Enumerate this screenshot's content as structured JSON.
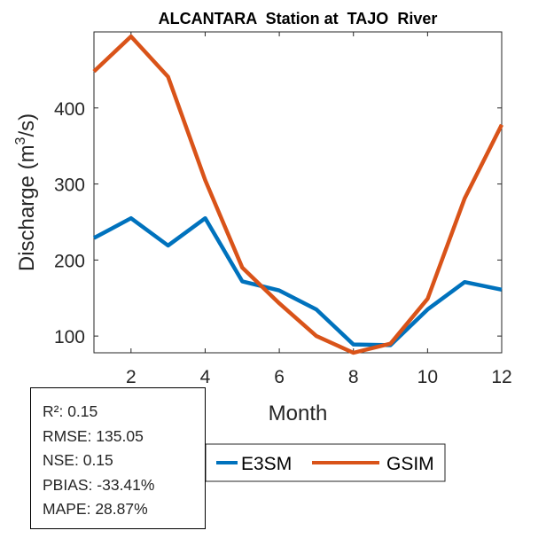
{
  "chart_data": {
    "type": "line",
    "title": "ALCANTARA  Station at  TAJO  River",
    "xlabel": "Month",
    "ylabel_prefix": "Discharge (m",
    "ylabel_sup": "3",
    "ylabel_suffix": "/s)",
    "xlim": [
      1,
      12
    ],
    "ylim": [
      78,
      500
    ],
    "xticks": [
      2,
      4,
      6,
      8,
      10,
      12
    ],
    "yticks": [
      100,
      200,
      300,
      400
    ],
    "grid": false,
    "legend_position": "bottom-center",
    "x": [
      1,
      2,
      3,
      4,
      5,
      6,
      7,
      8,
      9,
      10,
      11,
      12
    ],
    "series": [
      {
        "name": "E3SM",
        "color": "#0072BD",
        "values": [
          229,
          255,
          219,
          255,
          172,
          160,
          135,
          89,
          88,
          135,
          171,
          161
        ]
      },
      {
        "name": "GSIM",
        "color": "#D95319",
        "values": [
          448,
          494,
          441,
          305,
          190,
          143,
          100,
          78,
          90,
          149,
          281,
          378
        ]
      }
    ]
  },
  "stats": {
    "r2": "R²: 0.15",
    "rmse": "RMSE: 135.05",
    "nse": "NSE: 0.15",
    "pbias": "PBIAS: -33.41%",
    "mape": "MAPE: 28.87%"
  }
}
